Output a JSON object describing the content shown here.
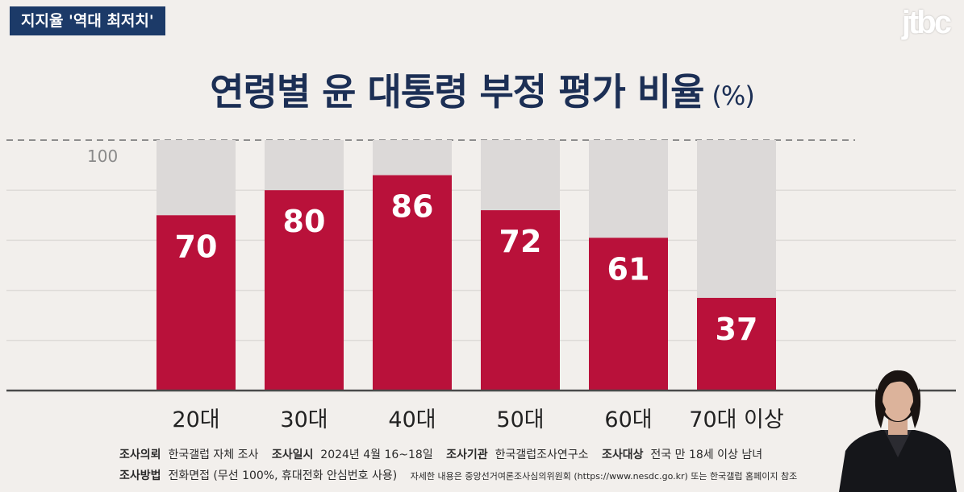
{
  "header": {
    "tag": "지지율 '역대 최저치'",
    "logo": "jtbc"
  },
  "title": {
    "main": "연령별 윤 대통령 부정 평가 비율",
    "unit": "(%)"
  },
  "chart_data": {
    "type": "bar",
    "stacked_background_to": 100,
    "categories": [
      "20대",
      "30대",
      "40대",
      "50대",
      "60대",
      "70대 이상"
    ],
    "values": [
      70,
      80,
      86,
      72,
      61,
      37
    ],
    "ylim": [
      0,
      100
    ],
    "ytick_labels": [
      "100"
    ],
    "grid": true,
    "colors": {
      "bar": "#b9113a",
      "remainder": "#dcd9d8",
      "text": "#ffffff",
      "category": "#222222"
    }
  },
  "notes": {
    "line1": [
      {
        "label": "조사의뢰",
        "value": "한국갤럽 자체 조사"
      },
      {
        "label": "조사일시",
        "value": "2024년 4월 16~18일"
      },
      {
        "label": "조사기관",
        "value": "한국갤럽조사연구소"
      },
      {
        "label": "조사대상",
        "value": "전국 만 18세 이상 남녀"
      }
    ],
    "line2": {
      "label": "조사방법",
      "value": "전화면접 (무선 100%, 휴대전화 안심번호 사용)",
      "extra": "자세한 내용은 중앙선거여론조사심의위원회 (https://www.nesdc.go.kr) 또는 한국갤럽 홈페이지 참조"
    }
  }
}
